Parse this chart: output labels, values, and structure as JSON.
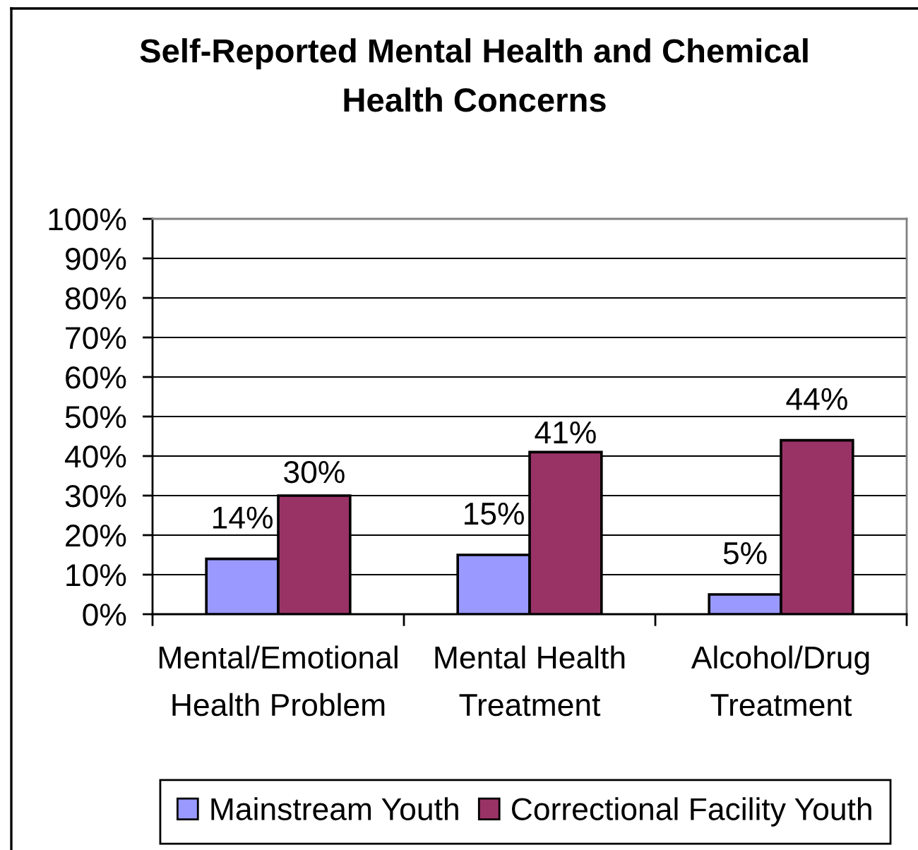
{
  "chart_data": {
    "type": "bar",
    "title": "Self-Reported Mental Health and Chemical\nHealth Concerns",
    "categories": [
      "Mental/Emotional\nHealth Problem",
      "Mental Health\nTreatment",
      "Alcohol/Drug\nTreatment"
    ],
    "series": [
      {
        "name": "Mainstream Youth",
        "color": "#9999ff",
        "values": [
          14,
          15,
          5
        ],
        "value_labels": [
          "14%",
          "15%",
          "5%"
        ]
      },
      {
        "name": "Correctional Facility Youth",
        "color": "#993366",
        "values": [
          30,
          41,
          44
        ],
        "value_labels": [
          "30%",
          "41%",
          "44%"
        ]
      }
    ],
    "ylim": [
      0,
      100
    ],
    "yticks": [
      {
        "value": 0,
        "label": "0%"
      },
      {
        "value": 10,
        "label": "10%"
      },
      {
        "value": 20,
        "label": "20%"
      },
      {
        "value": 30,
        "label": "30%"
      },
      {
        "value": 40,
        "label": "40%"
      },
      {
        "value": 50,
        "label": "50%"
      },
      {
        "value": 60,
        "label": "60%"
      },
      {
        "value": 70,
        "label": "70%"
      },
      {
        "value": 80,
        "label": "80%"
      },
      {
        "value": 90,
        "label": "90%"
      },
      {
        "value": 100,
        "label": "100%"
      }
    ],
    "grid": "y",
    "legend": "bottom"
  }
}
